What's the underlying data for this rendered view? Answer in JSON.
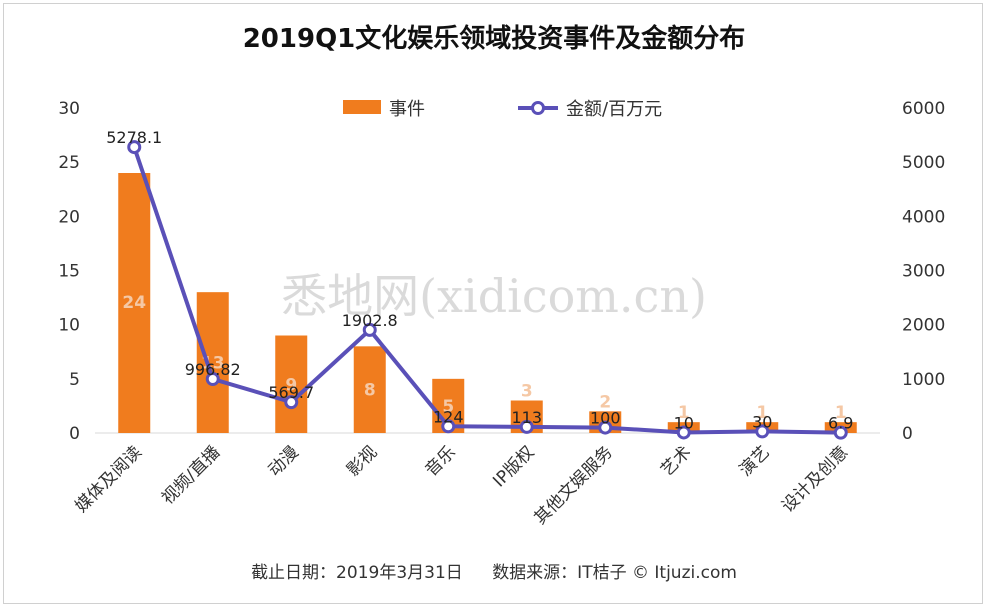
{
  "chart_data": {
    "type": "bar",
    "title": "2019Q1文化娱乐领域投资事件及金额分布",
    "categories": [
      "媒体及阅读",
      "视频/直播",
      "动漫",
      "影视",
      "音乐",
      "IP版权",
      "其他文娱服务",
      "艺术",
      "演艺",
      "设计及创意"
    ],
    "series": [
      {
        "name": "事件",
        "axis": "left",
        "type": "bar",
        "color": "#f07c1e",
        "values": [
          24,
          13,
          9,
          8,
          5,
          3,
          2,
          1,
          1,
          1
        ]
      },
      {
        "name": "金额/百万元",
        "axis": "right",
        "type": "line",
        "color": "#5a50b8",
        "values": [
          5278.1,
          996.82,
          569.7,
          1902.8,
          124,
          113,
          100,
          10,
          30,
          6.9
        ],
        "labels": [
          "5278.1",
          "996.82",
          "569.7",
          "1902.8",
          "124",
          "113",
          "100",
          "10",
          "30",
          "6.9"
        ]
      }
    ],
    "y_left": {
      "min": 0,
      "max": 30,
      "ticks": [
        0,
        5,
        10,
        15,
        20,
        25,
        30
      ]
    },
    "y_right": {
      "min": 0,
      "max": 6000,
      "ticks": [
        0,
        1000,
        2000,
        3000,
        4000,
        5000,
        6000
      ]
    },
    "legend_position": "top-center",
    "grid": false
  },
  "footer": {
    "date": "截止日期：2019年3月31日",
    "source": "数据来源：IT桔子 © Itjuzi.com"
  },
  "watermark": "悉地网(xidicom.cn)"
}
